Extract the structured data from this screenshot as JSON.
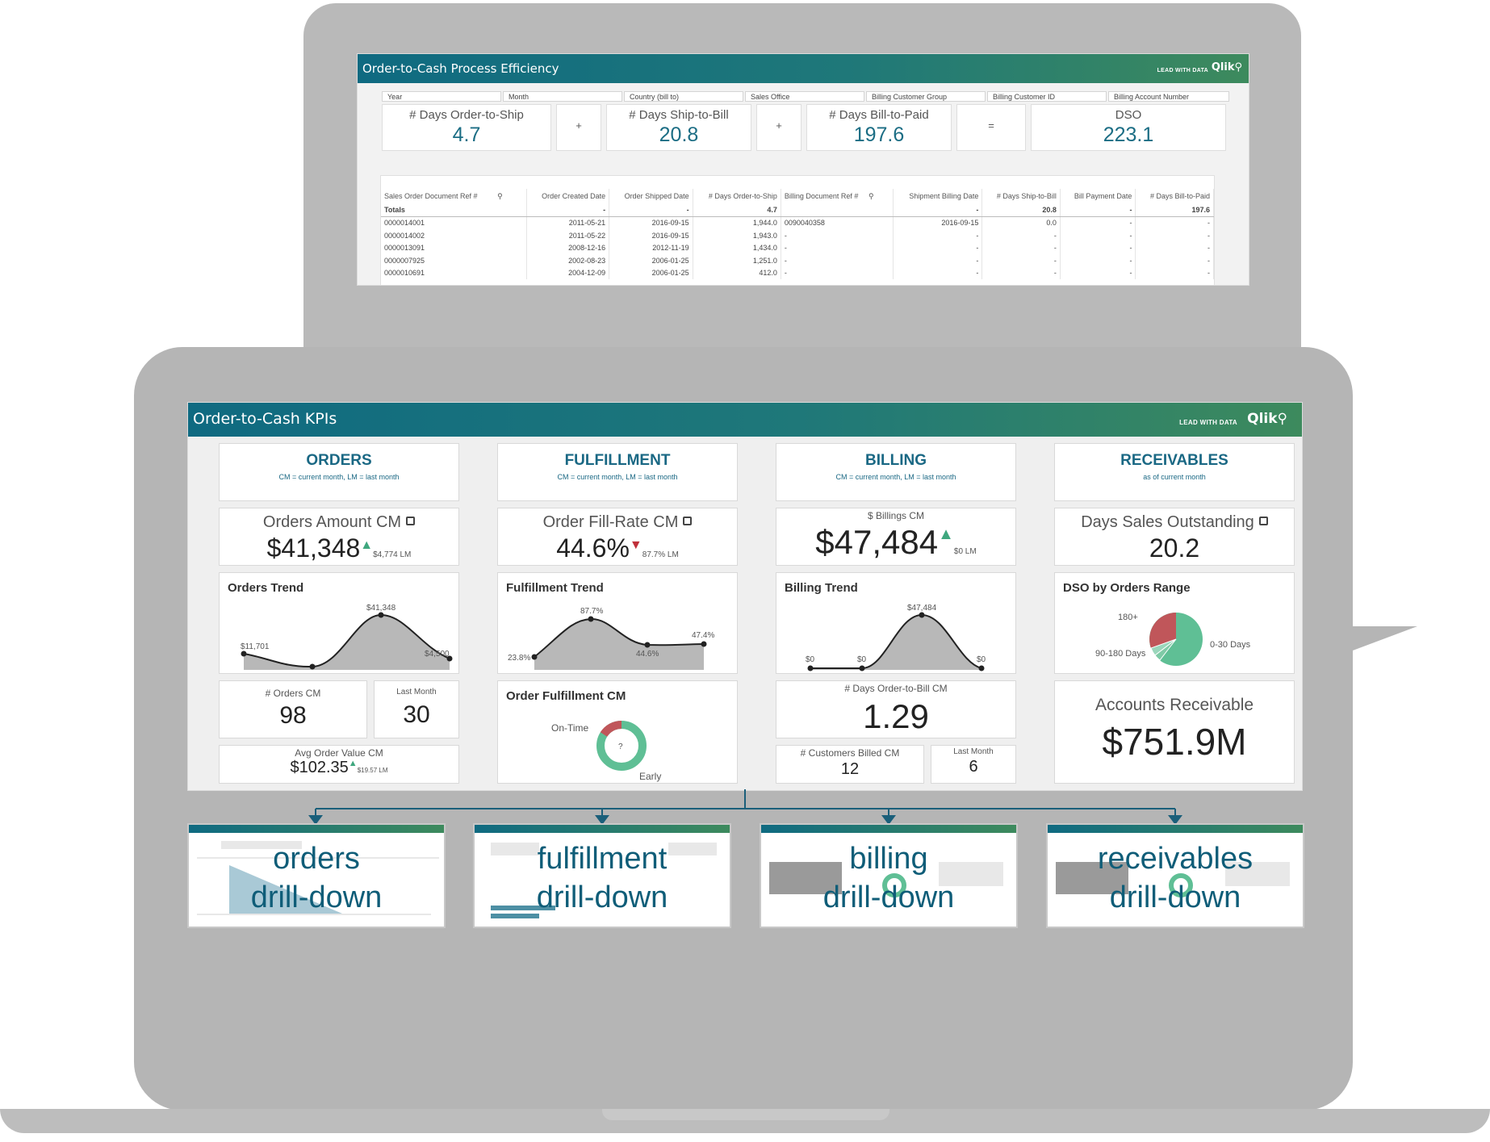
{
  "process": {
    "title": "Order-to-Cash Process Efficiency",
    "lead": "LEAD WITH DATA",
    "logo": "Qlik",
    "filters": [
      "Year",
      "Month",
      "Country (bill to)",
      "Sales Office",
      "Billing Customer Group",
      "Billing Customer ID",
      "Billing Account Number"
    ],
    "kpis": [
      {
        "label": "# Days Order-to-Ship",
        "value": "4.7"
      },
      {
        "op": "+"
      },
      {
        "label": "# Days Ship-to-Bill",
        "value": "20.8"
      },
      {
        "op": "+"
      },
      {
        "label": "# Days Bill-to-Paid",
        "value": "197.6"
      },
      {
        "op": "="
      },
      {
        "label": "DSO",
        "value": "223.1"
      }
    ],
    "table": {
      "headers": [
        "Sales Order Document Ref #",
        "Order Created Date",
        "Order Shipped Date",
        "# Days Order-to-Ship",
        "Billing Document Ref #",
        "Shipment Billing Date",
        "# Days Ship-to-Bill",
        "Bill Payment Date",
        "# Days Bill-to-Paid"
      ],
      "totals": [
        "Totals",
        "-",
        "-",
        "4.7",
        "",
        "-",
        "20.8",
        "-",
        "197.6"
      ],
      "rows": [
        [
          "0000014001",
          "2011-05-21",
          "2016-09-15",
          "1,944.0",
          "0090040358",
          "2016-09-15",
          "0.0",
          "-",
          "-"
        ],
        [
          "0000014002",
          "2011-05-22",
          "2016-09-15",
          "1,943.0",
          "-",
          "-",
          "-",
          "-",
          "-"
        ],
        [
          "0000013091",
          "2008-12-16",
          "2012-11-19",
          "1,434.0",
          "-",
          "-",
          "-",
          "-",
          "-"
        ],
        [
          "0000007925",
          "2002-08-23",
          "2006-01-25",
          "1,251.0",
          "-",
          "-",
          "-",
          "-",
          "-"
        ],
        [
          "0000010691",
          "2004-12-09",
          "2006-01-25",
          "412.0",
          "-",
          "-",
          "-",
          "-",
          "-"
        ]
      ]
    }
  },
  "kpi": {
    "title": "Order-to-Cash KPIs",
    "lead": "LEAD WITH DATA",
    "logo": "Qlik",
    "sections": [
      {
        "name": "ORDERS",
        "sub": "CM = current month, LM = last month"
      },
      {
        "name": "FULFILLMENT",
        "sub": "CM = current month, LM = last month"
      },
      {
        "name": "BILLING",
        "sub": "CM = current month, LM = last month"
      },
      {
        "name": "RECEIVABLES",
        "sub": "as of current month"
      }
    ],
    "orders": {
      "amount_label": "Orders Amount CM",
      "amount_value": "$41,348",
      "amount_lm": "$4,774 LM",
      "trend_title": "Orders Trend",
      "trend_labels": [
        "$11,701",
        "$41,348",
        "$4,500"
      ],
      "count_label": "# Orders CM",
      "count_value": "98",
      "lm_label": "Last Month",
      "lm_value": "30",
      "aov_label": "Avg Order Value CM",
      "aov_value": "$102.35",
      "aov_lm": "$19.57 LM"
    },
    "fulfillment": {
      "rate_label": "Order Fill-Rate CM",
      "rate_value": "44.6%",
      "rate_lm": "87.7% LM",
      "trend_title": "Fulfillment Trend",
      "trend_labels": [
        "23.8%",
        "87.7%",
        "44.6%",
        "47.4%"
      ],
      "donut_title": "Order Fulfillment CM",
      "on_time": "On-Time",
      "early": "Early",
      "center": "?"
    },
    "billing": {
      "bill_label": "$ Billings CM",
      "bill_value": "$47,484",
      "bill_lm": "$0 LM",
      "trend_title": "Billing Trend",
      "trend_labels": [
        "$0",
        "$0",
        "$47,484",
        "$0"
      ],
      "days_label": "# Days Order-to-Bill CM",
      "days_value": "1.29",
      "cust_label": "# Customers Billed CM",
      "cust_value": "12",
      "lm_label": "Last Month",
      "lm_value": "6"
    },
    "receivables": {
      "dso_label": "Days Sales Outstanding",
      "dso_value": "20.2",
      "pie_title": "DSO by Orders Range",
      "pie_labels": [
        "180+",
        "90-180 Days",
        "0-30 Days"
      ],
      "ar_label": "Accounts Receivable",
      "ar_value": "$751.9M"
    }
  },
  "drilldowns": [
    {
      "line1": "orders",
      "line2": "drill-down"
    },
    {
      "line1": "fulfillment",
      "line2": "drill-down"
    },
    {
      "line1": "billing",
      "line2": "drill-down"
    },
    {
      "line1": "receivables",
      "line2": "drill-down"
    }
  ],
  "colors": {
    "teal": "#1a6884",
    "up": "#3fa77e",
    "down": "#c0303a",
    "pie_red": "#c0565a",
    "pie_green": "#5fbf95"
  }
}
